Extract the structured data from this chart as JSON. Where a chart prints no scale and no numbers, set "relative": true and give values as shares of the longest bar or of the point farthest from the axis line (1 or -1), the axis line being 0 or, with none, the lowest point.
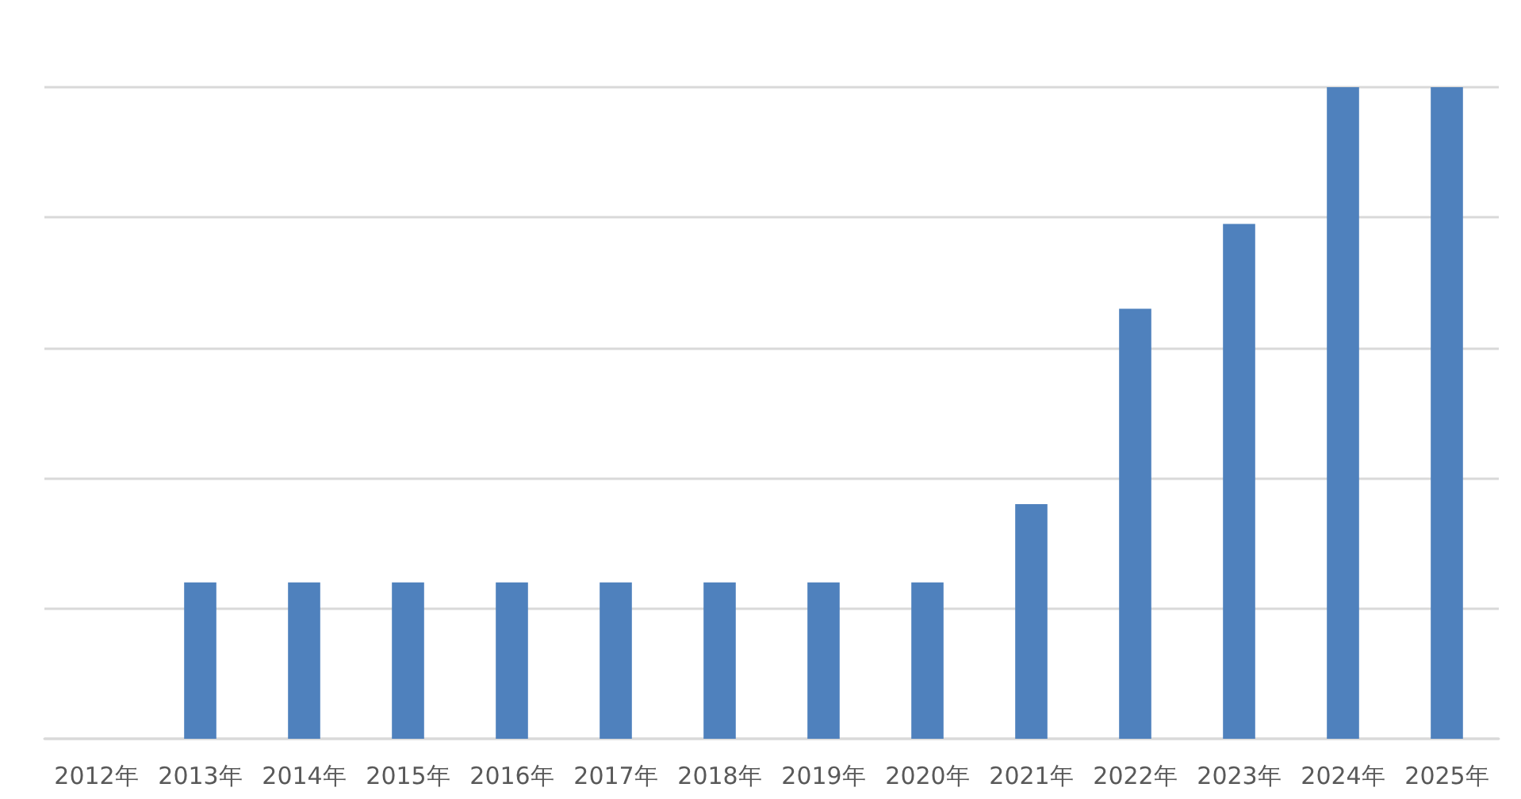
{
  "chart_data": {
    "type": "bar",
    "relative": true,
    "categories": [
      "2012年",
      "2013年",
      "2014年",
      "2015年",
      "2016年",
      "2017年",
      "2018年",
      "2019年",
      "2020年",
      "2021年",
      "2022年",
      "2023年",
      "2024年",
      "2025年"
    ],
    "values": [
      0,
      0.24,
      0.24,
      0.24,
      0.24,
      0.24,
      0.24,
      0.24,
      0.24,
      0.36,
      0.66,
      0.79,
      1,
      1
    ],
    "color": "#4f81bd",
    "grid": "y"
  }
}
